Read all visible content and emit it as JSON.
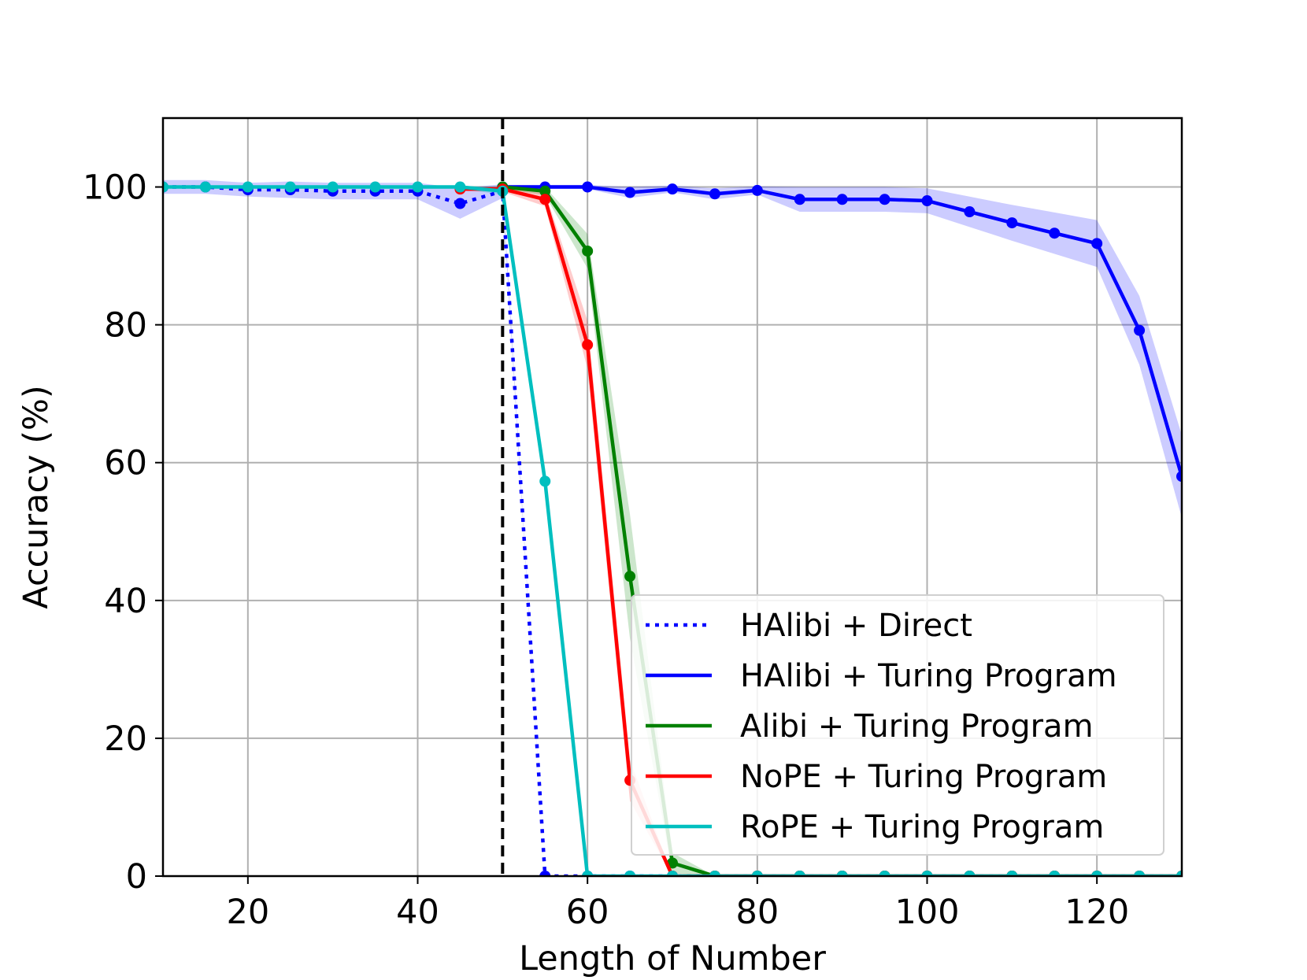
{
  "chart_data": {
    "type": "line",
    "title": "",
    "xlabel": "Length of Number",
    "ylabel": "Accuracy (%)",
    "xlim": [
      10,
      130
    ],
    "ylim": [
      0,
      110
    ],
    "xticks": [
      20,
      40,
      60,
      80,
      100,
      120
    ],
    "yticks": [
      0,
      20,
      40,
      60,
      80,
      100
    ],
    "grid": true,
    "legend_position": "lower-right",
    "reference_line": {
      "x": 50,
      "style": "dashed",
      "color": "#000000"
    },
    "series": [
      {
        "name": "HAlibi + Direct",
        "color": "#0000ff",
        "style": "dotted",
        "x": [
          10,
          15,
          20,
          25,
          30,
          35,
          40,
          45,
          50,
          55,
          60,
          65,
          70,
          75,
          80,
          85,
          90,
          95,
          100,
          105,
          110,
          115,
          120,
          125,
          130
        ],
        "y": [
          100,
          100,
          99.6,
          99.6,
          99.4,
          99.4,
          99.4,
          97.6,
          99.4,
          0,
          0,
          0,
          0,
          0,
          0,
          0,
          0,
          0,
          0,
          0,
          0,
          0,
          0,
          0,
          0
        ],
        "band": [
          1,
          1,
          1,
          1.2,
          1.2,
          1.2,
          1.2,
          2.2,
          1,
          0,
          0,
          0,
          0,
          0,
          0,
          0,
          0,
          0,
          0,
          0,
          0,
          0,
          0,
          0,
          0
        ]
      },
      {
        "name": "HAlibi + Turing Program",
        "color": "#0000ff",
        "style": "solid",
        "x": [
          50,
          55,
          60,
          65,
          70,
          75,
          80,
          85,
          90,
          95,
          100,
          105,
          110,
          115,
          120,
          125,
          130
        ],
        "y": [
          100,
          100,
          100,
          99.2,
          99.7,
          99,
          99.5,
          98.2,
          98.2,
          98.2,
          98,
          96.4,
          94.8,
          93.3,
          91.8,
          79.2,
          58
        ],
        "band": [
          0.3,
          0.3,
          0.3,
          0.8,
          0.5,
          0.8,
          0.6,
          1.8,
          1.8,
          1.8,
          1.8,
          2.2,
          2.6,
          3,
          3.4,
          5,
          6
        ]
      },
      {
        "name": "Alibi + Turing Program",
        "color": "#008000",
        "style": "solid",
        "x": [
          50,
          55,
          60,
          65,
          70,
          75,
          80,
          85,
          90,
          95,
          100,
          105,
          110,
          115,
          120,
          125,
          130
        ],
        "y": [
          100,
          99.4,
          90.7,
          43.5,
          1.9,
          0,
          0,
          0,
          0,
          0,
          0,
          0,
          0,
          0,
          0,
          0,
          0
        ],
        "band": [
          0.3,
          0.6,
          2.5,
          9,
          1.5,
          0,
          0,
          0,
          0,
          0,
          0,
          0,
          0,
          0,
          0,
          0,
          0
        ]
      },
      {
        "name": "NoPE + Turing Program",
        "color": "#ff0000",
        "style": "solid",
        "x": [
          45,
          50,
          55,
          60,
          65,
          70,
          75,
          80,
          85,
          90,
          95,
          100,
          105,
          110,
          115,
          120,
          125,
          130
        ],
        "y": [
          99.7,
          99.7,
          98.2,
          77.1,
          13.9,
          0,
          0,
          0,
          0,
          0,
          0,
          0,
          0,
          0,
          0,
          0,
          0,
          0
        ],
        "band": [
          0.3,
          0.4,
          1,
          3.5,
          3,
          0,
          0,
          0,
          0,
          0,
          0,
          0,
          0,
          0,
          0,
          0,
          0,
          0
        ]
      },
      {
        "name": "RoPE + Turing Program",
        "color": "#00bfbf",
        "style": "solid",
        "x": [
          10,
          15,
          20,
          25,
          30,
          35,
          40,
          45,
          50,
          55,
          60,
          65,
          70,
          75,
          80,
          85,
          90,
          95,
          100,
          105,
          110,
          115,
          120,
          125,
          130
        ],
        "y": [
          100,
          100,
          100,
          100,
          100,
          100,
          100,
          100,
          99.4,
          57.3,
          0,
          0,
          0,
          0,
          0,
          0,
          0,
          0,
          0,
          0,
          0,
          0,
          0,
          0,
          0
        ],
        "band": [
          0.2,
          0.2,
          0.2,
          0.2,
          0.2,
          0.2,
          0.2,
          0.2,
          0.6,
          2,
          0,
          0,
          0,
          0,
          0,
          0,
          0,
          0,
          0,
          0,
          0,
          0,
          0,
          0,
          0
        ]
      }
    ]
  }
}
